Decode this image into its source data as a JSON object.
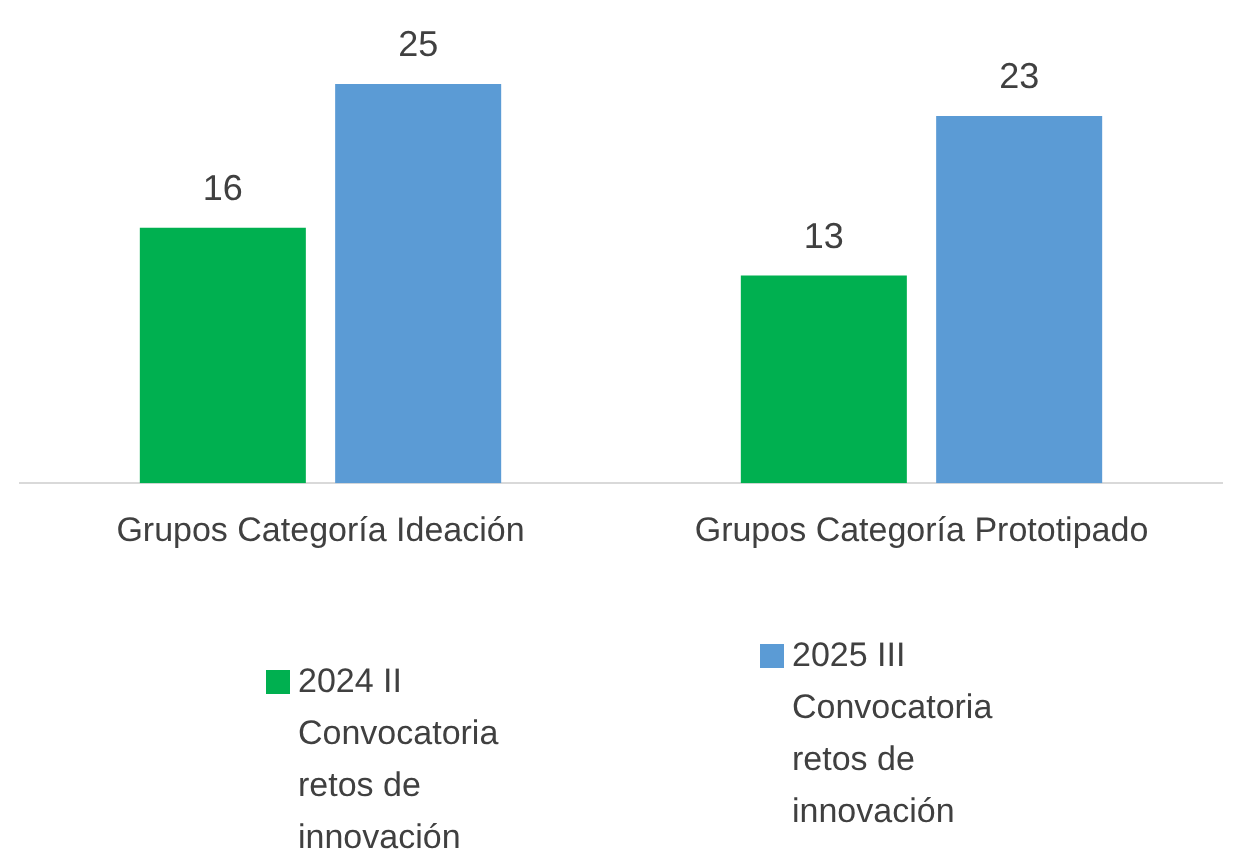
{
  "chart_data": {
    "type": "bar",
    "categories": [
      "Grupos Categoría Ideación",
      "Grupos Categoría Prototipado"
    ],
    "series": [
      {
        "name": "2024 II Convocatoria retos de innovación",
        "color": "#00b050",
        "values": [
          16,
          13
        ]
      },
      {
        "name": "2025 III Convocatoria retos de innovación",
        "color": "#5b9bd5",
        "values": [
          25,
          23
        ]
      }
    ],
    "data_labels": true,
    "grid": false,
    "legend": "bottom",
    "tick_labels": "x"
  }
}
